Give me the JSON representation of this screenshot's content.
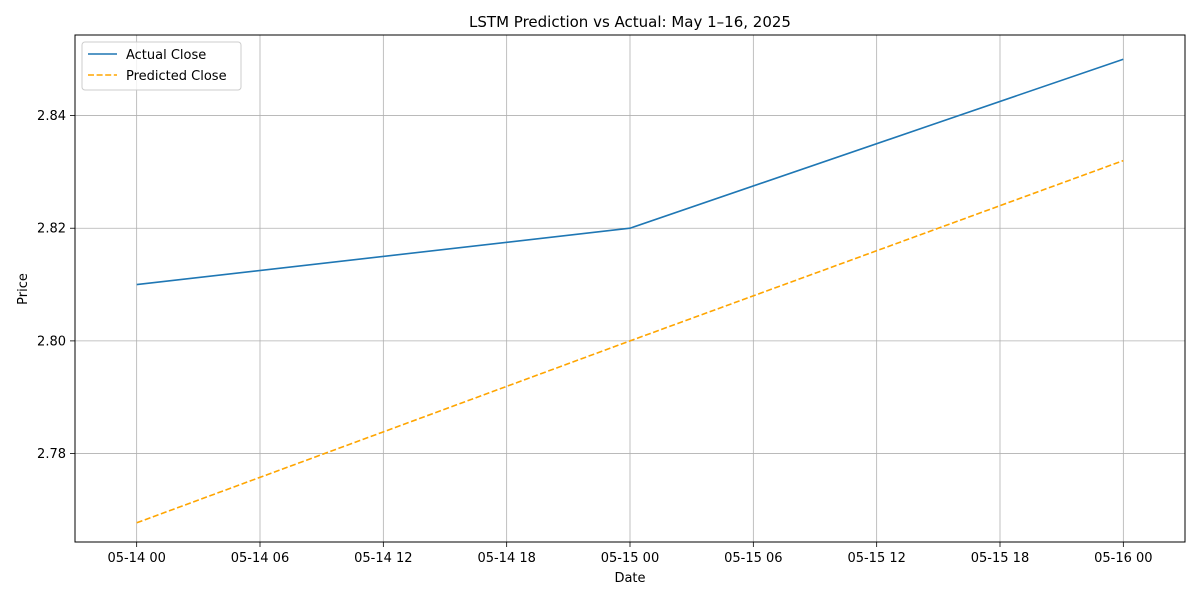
{
  "chart_data": {
    "type": "line",
    "title": "LSTM Prediction vs Actual: May 1–16, 2025",
    "xlabel": "Date",
    "ylabel": "Price",
    "x_ticks": [
      "05-14 00",
      "05-14 06",
      "05-14 12",
      "05-14 18",
      "05-15 00",
      "05-15 06",
      "05-15 12",
      "05-15 18",
      "05-16 00"
    ],
    "y_ticks": [
      "2.78",
      "2.80",
      "2.82",
      "2.84"
    ],
    "ylim": [
      2.7643,
      2.8543
    ],
    "xlim": [
      "2025-05-13 21:00",
      "2025-05-16 03:00"
    ],
    "grid": true,
    "legend_position": "top-left",
    "series": [
      {
        "name": "Actual Close",
        "color": "#1f77b4",
        "style": "solid",
        "points": [
          {
            "x": "2025-05-14 00:00",
            "y": 2.81
          },
          {
            "x": "2025-05-15 00:00",
            "y": 2.82
          },
          {
            "x": "2025-05-16 00:00",
            "y": 2.85
          }
        ]
      },
      {
        "name": "Predicted Close",
        "color": "#ffa500",
        "style": "dashed",
        "points": [
          {
            "x": "2025-05-14 00:00",
            "y": 2.7677
          },
          {
            "x": "2025-05-15 00:00",
            "y": 2.8
          },
          {
            "x": "2025-05-16 00:00",
            "y": 2.832
          }
        ]
      }
    ]
  }
}
